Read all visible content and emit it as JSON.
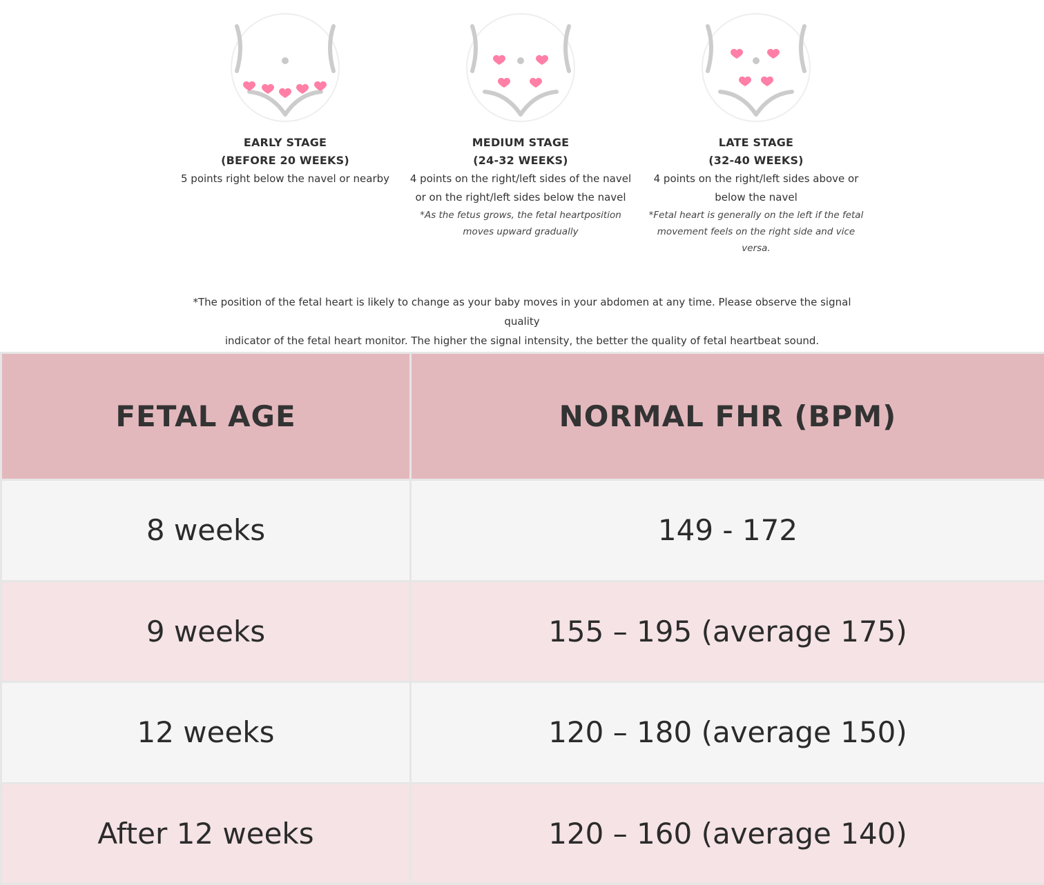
{
  "colors": {
    "heart": "#ff7fa6",
    "outline": "#c9c9c9",
    "header_bg": "#e3b8bd",
    "row_light": "#f5f5f5",
    "row_pink": "#f5e3e5"
  },
  "stages": [
    {
      "icon": "belly-early-stage-icon",
      "title": "EARLY STAGE",
      "subtitle": "(BEFORE 20 WEEKS)",
      "desc_lines": [
        "5 points right below the navel or nearby"
      ],
      "note_lines": []
    },
    {
      "icon": "belly-medium-stage-icon",
      "title": "MEDIUM STAGE",
      "subtitle": "(24-32 WEEKS)",
      "desc_lines": [
        "4 points on the right/left sides of the navel",
        "or on the right/left sides below the navel"
      ],
      "note_lines": [
        "*As the fetus grows, the fetal heartposition",
        "moves upward gradually"
      ]
    },
    {
      "icon": "belly-late-stage-icon",
      "title": "LATE STAGE",
      "subtitle": "(32-40 WEEKS)",
      "desc_lines": [
        "4 points on the right/left sides above or",
        "below the navel"
      ],
      "note_lines": [
        "*Fetal heart is generally on the left if the fetal",
        "movement feels on the right side and vice versa."
      ]
    }
  ],
  "footnote_lines": [
    "*The position of the fetal heart is likely to change as your baby moves in your abdomen at any time. Please observe the signal quality",
    "indicator of the fetal heart monitor. The higher the signal intensity, the better the quality of fetal heartbeat sound."
  ],
  "table": {
    "headers": [
      "FETAL AGE",
      "NORMAL FHR (BPM)"
    ],
    "rows": [
      [
        "8 weeks",
        "149 - 172"
      ],
      [
        "9 weeks",
        "155 – 195 (average 175)"
      ],
      [
        "12 weeks",
        "120 – 180 (average 150)"
      ],
      [
        "After 12 weeks",
        "120 – 160 (average 140)"
      ]
    ]
  }
}
